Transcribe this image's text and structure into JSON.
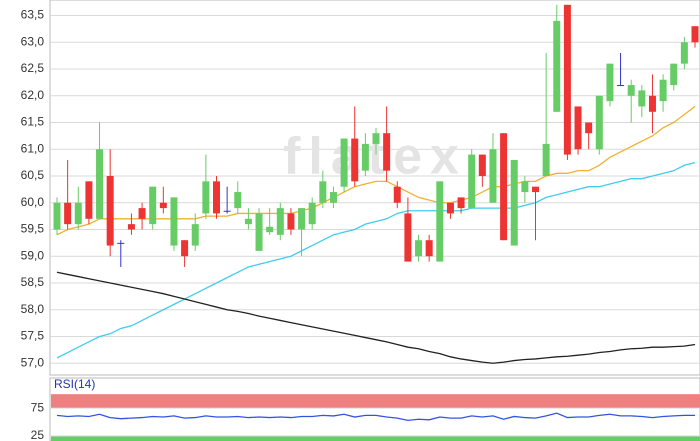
{
  "chart_data": [
    {
      "type": "candlestick",
      "watermark": "flatex",
      "up_color": "#66cc66",
      "down_color": "#ee3333",
      "flat_color": "#3333cc",
      "ylim": [
        56.78,
        63.79
      ],
      "grid": true,
      "yticks": [
        {
          "value": 57.0,
          "label": "57,0"
        },
        {
          "value": 57.5,
          "label": "57,5"
        },
        {
          "value": 58.0,
          "label": "58,0"
        },
        {
          "value": 58.5,
          "label": "58,5"
        },
        {
          "value": 59.0,
          "label": "59,0"
        },
        {
          "value": 59.5,
          "label": "59,5"
        },
        {
          "value": 60.0,
          "label": "60,0"
        },
        {
          "value": 60.5,
          "label": "60,5"
        },
        {
          "value": 61.0,
          "label": "61,0"
        },
        {
          "value": 61.5,
          "label": "61,5"
        },
        {
          "value": 62.0,
          "label": "62,0"
        },
        {
          "value": 62.5,
          "label": "62,5"
        },
        {
          "value": 63.0,
          "label": "63,0"
        },
        {
          "value": 63.5,
          "label": "63,5"
        }
      ],
      "open": [
        59.5,
        60.0,
        59.6,
        60.4,
        59.7,
        60.5,
        59.25,
        59.6,
        59.9,
        59.6,
        60.0,
        59.2,
        59.3,
        59.2,
        59.8,
        60.4,
        59.85,
        59.9,
        59.6,
        59.1,
        59.45,
        59.4,
        59.8,
        59.5,
        59.6,
        60.0,
        60.0,
        60.3,
        61.2,
        60.6,
        61.1,
        61.3,
        60.3,
        59.8,
        59.0,
        59.3,
        58.9,
        60.0,
        60.1,
        59.9,
        60.9,
        60.0,
        61.3,
        59.2,
        60.2,
        60.3,
        60.5,
        61.7,
        63.7,
        61.8,
        61.5,
        61.0,
        61.9,
        62.2,
        62.0,
        61.8,
        62.0,
        61.9,
        62.2,
        62.6,
        63.3
      ],
      "high": [
        60.1,
        60.8,
        60.3,
        60.4,
        61.5,
        61.0,
        59.3,
        59.8,
        60.0,
        60.3,
        60.3,
        60.1,
        59.3,
        59.8,
        60.9,
        60.5,
        60.3,
        60.4,
        59.9,
        59.9,
        59.9,
        60.0,
        59.9,
        59.9,
        60.1,
        60.6,
        60.3,
        61.2,
        61.8,
        61.3,
        61.4,
        61.8,
        60.4,
        60.1,
        59.4,
        59.4,
        60.4,
        60.0,
        60.1,
        61.0,
        60.9,
        61.3,
        61.3,
        60.8,
        60.5,
        60.3,
        62.8,
        63.7,
        63.7,
        61.8,
        61.5,
        62.0,
        62.6,
        62.8,
        62.3,
        62.2,
        62.4,
        62.4,
        62.6,
        63.1,
        63.3
      ],
      "low": [
        59.4,
        59.5,
        59.5,
        59.6,
        59.7,
        59.0,
        58.8,
        59.4,
        59.5,
        59.5,
        59.8,
        59.1,
        58.8,
        59.1,
        59.7,
        59.7,
        59.8,
        59.8,
        59.5,
        59.1,
        59.4,
        59.3,
        59.4,
        59.0,
        59.5,
        59.9,
        59.9,
        60.2,
        60.3,
        60.5,
        60.9,
        60.4,
        59.9,
        58.9,
        58.9,
        58.9,
        58.9,
        59.7,
        59.8,
        59.9,
        60.3,
        60.0,
        59.3,
        59.2,
        60.0,
        59.3,
        60.5,
        61.7,
        60.8,
        60.9,
        61.0,
        60.9,
        61.8,
        62.2,
        61.5,
        61.6,
        61.3,
        61.7,
        62.1,
        62.5,
        62.9
      ],
      "close": [
        60.0,
        59.6,
        60.0,
        59.7,
        61.0,
        59.2,
        59.25,
        59.5,
        59.7,
        60.3,
        59.9,
        60.1,
        59.0,
        59.6,
        60.4,
        59.8,
        59.85,
        60.2,
        59.7,
        59.8,
        59.55,
        59.9,
        59.5,
        59.9,
        60.0,
        60.4,
        60.2,
        61.2,
        60.4,
        61.1,
        61.3,
        60.6,
        60.0,
        58.9,
        59.3,
        59.0,
        60.4,
        59.8,
        59.9,
        60.9,
        60.5,
        61.0,
        59.3,
        60.8,
        60.4,
        60.2,
        61.1,
        63.4,
        60.9,
        61.0,
        61.3,
        62.0,
        62.6,
        62.2,
        62.2,
        62.1,
        61.7,
        62.3,
        62.6,
        63.0,
        63.0
      ],
      "series": [
        {
          "color": "#f0b030",
          "values": [
            59.4,
            59.5,
            59.55,
            59.6,
            59.7,
            59.7,
            59.7,
            59.7,
            59.7,
            59.7,
            59.7,
            59.7,
            59.7,
            59.7,
            59.75,
            59.75,
            59.75,
            59.8,
            59.8,
            59.8,
            59.8,
            59.8,
            59.8,
            59.85,
            59.9,
            60.0,
            60.1,
            60.2,
            60.3,
            60.35,
            60.4,
            60.4,
            60.3,
            60.2,
            60.1,
            60.05,
            60.0,
            60.0,
            60.05,
            60.1,
            60.2,
            60.3,
            60.3,
            60.35,
            60.4,
            60.4,
            60.5,
            60.55,
            60.55,
            60.6,
            60.6,
            60.7,
            60.85,
            60.95,
            61.05,
            61.15,
            61.25,
            61.4,
            61.5,
            61.65,
            61.8
          ]
        },
        {
          "color": "#40ccee",
          "values": [
            57.1,
            57.2,
            57.3,
            57.4,
            57.5,
            57.55,
            57.65,
            57.7,
            57.8,
            57.9,
            58.0,
            58.1,
            58.2,
            58.3,
            58.4,
            58.5,
            58.6,
            58.7,
            58.8,
            58.85,
            58.9,
            58.95,
            59.0,
            59.1,
            59.2,
            59.3,
            59.4,
            59.45,
            59.5,
            59.6,
            59.65,
            59.7,
            59.8,
            59.85,
            59.85,
            59.85,
            59.85,
            59.85,
            59.85,
            59.9,
            59.9,
            59.9,
            59.9,
            59.9,
            59.95,
            60.0,
            60.1,
            60.15,
            60.2,
            60.25,
            60.3,
            60.3,
            60.35,
            60.4,
            60.45,
            60.45,
            60.5,
            60.55,
            60.6,
            60.7,
            60.75
          ]
        },
        {
          "color": "#222222",
          "values": [
            58.7,
            58.66,
            58.62,
            58.58,
            58.54,
            58.5,
            58.46,
            58.42,
            58.38,
            58.34,
            58.3,
            58.25,
            58.2,
            58.15,
            58.1,
            58.05,
            58.0,
            57.97,
            57.93,
            57.88,
            57.84,
            57.8,
            57.76,
            57.72,
            57.68,
            57.64,
            57.6,
            57.56,
            57.52,
            57.48,
            57.44,
            57.4,
            57.35,
            57.3,
            57.27,
            57.22,
            57.18,
            57.12,
            57.08,
            57.05,
            57.02,
            57.0,
            57.02,
            57.05,
            57.07,
            57.08,
            57.1,
            57.12,
            57.13,
            57.15,
            57.17,
            57.2,
            57.22,
            57.25,
            57.27,
            57.28,
            57.3,
            57.3,
            57.31,
            57.32,
            57.35
          ]
        }
      ]
    },
    {
      "type": "line",
      "title": "RSI(14)",
      "ylim": [
        16,
        129
      ],
      "yticks": [
        25,
        75
      ],
      "grid": true,
      "bands": [
        {
          "from": 75,
          "to": 100,
          "color": "#f08080"
        },
        {
          "from": 0,
          "to": 25,
          "color": "#66cc66"
        }
      ],
      "series": [
        {
          "color": "#3355dd",
          "values": [
            62,
            60,
            61,
            60,
            64,
            58,
            56,
            57,
            58,
            60,
            59,
            61,
            57,
            58,
            61,
            59,
            59,
            60,
            58,
            59,
            58,
            59,
            58,
            60,
            60,
            62,
            61,
            64,
            59,
            62,
            62,
            59,
            57,
            53,
            55,
            54,
            59,
            57,
            57,
            61,
            59,
            61,
            55,
            60,
            58,
            57,
            61,
            66,
            58,
            59,
            59,
            62,
            64,
            61,
            61,
            60,
            58,
            60,
            61,
            62,
            62
          ]
        }
      ]
    }
  ]
}
